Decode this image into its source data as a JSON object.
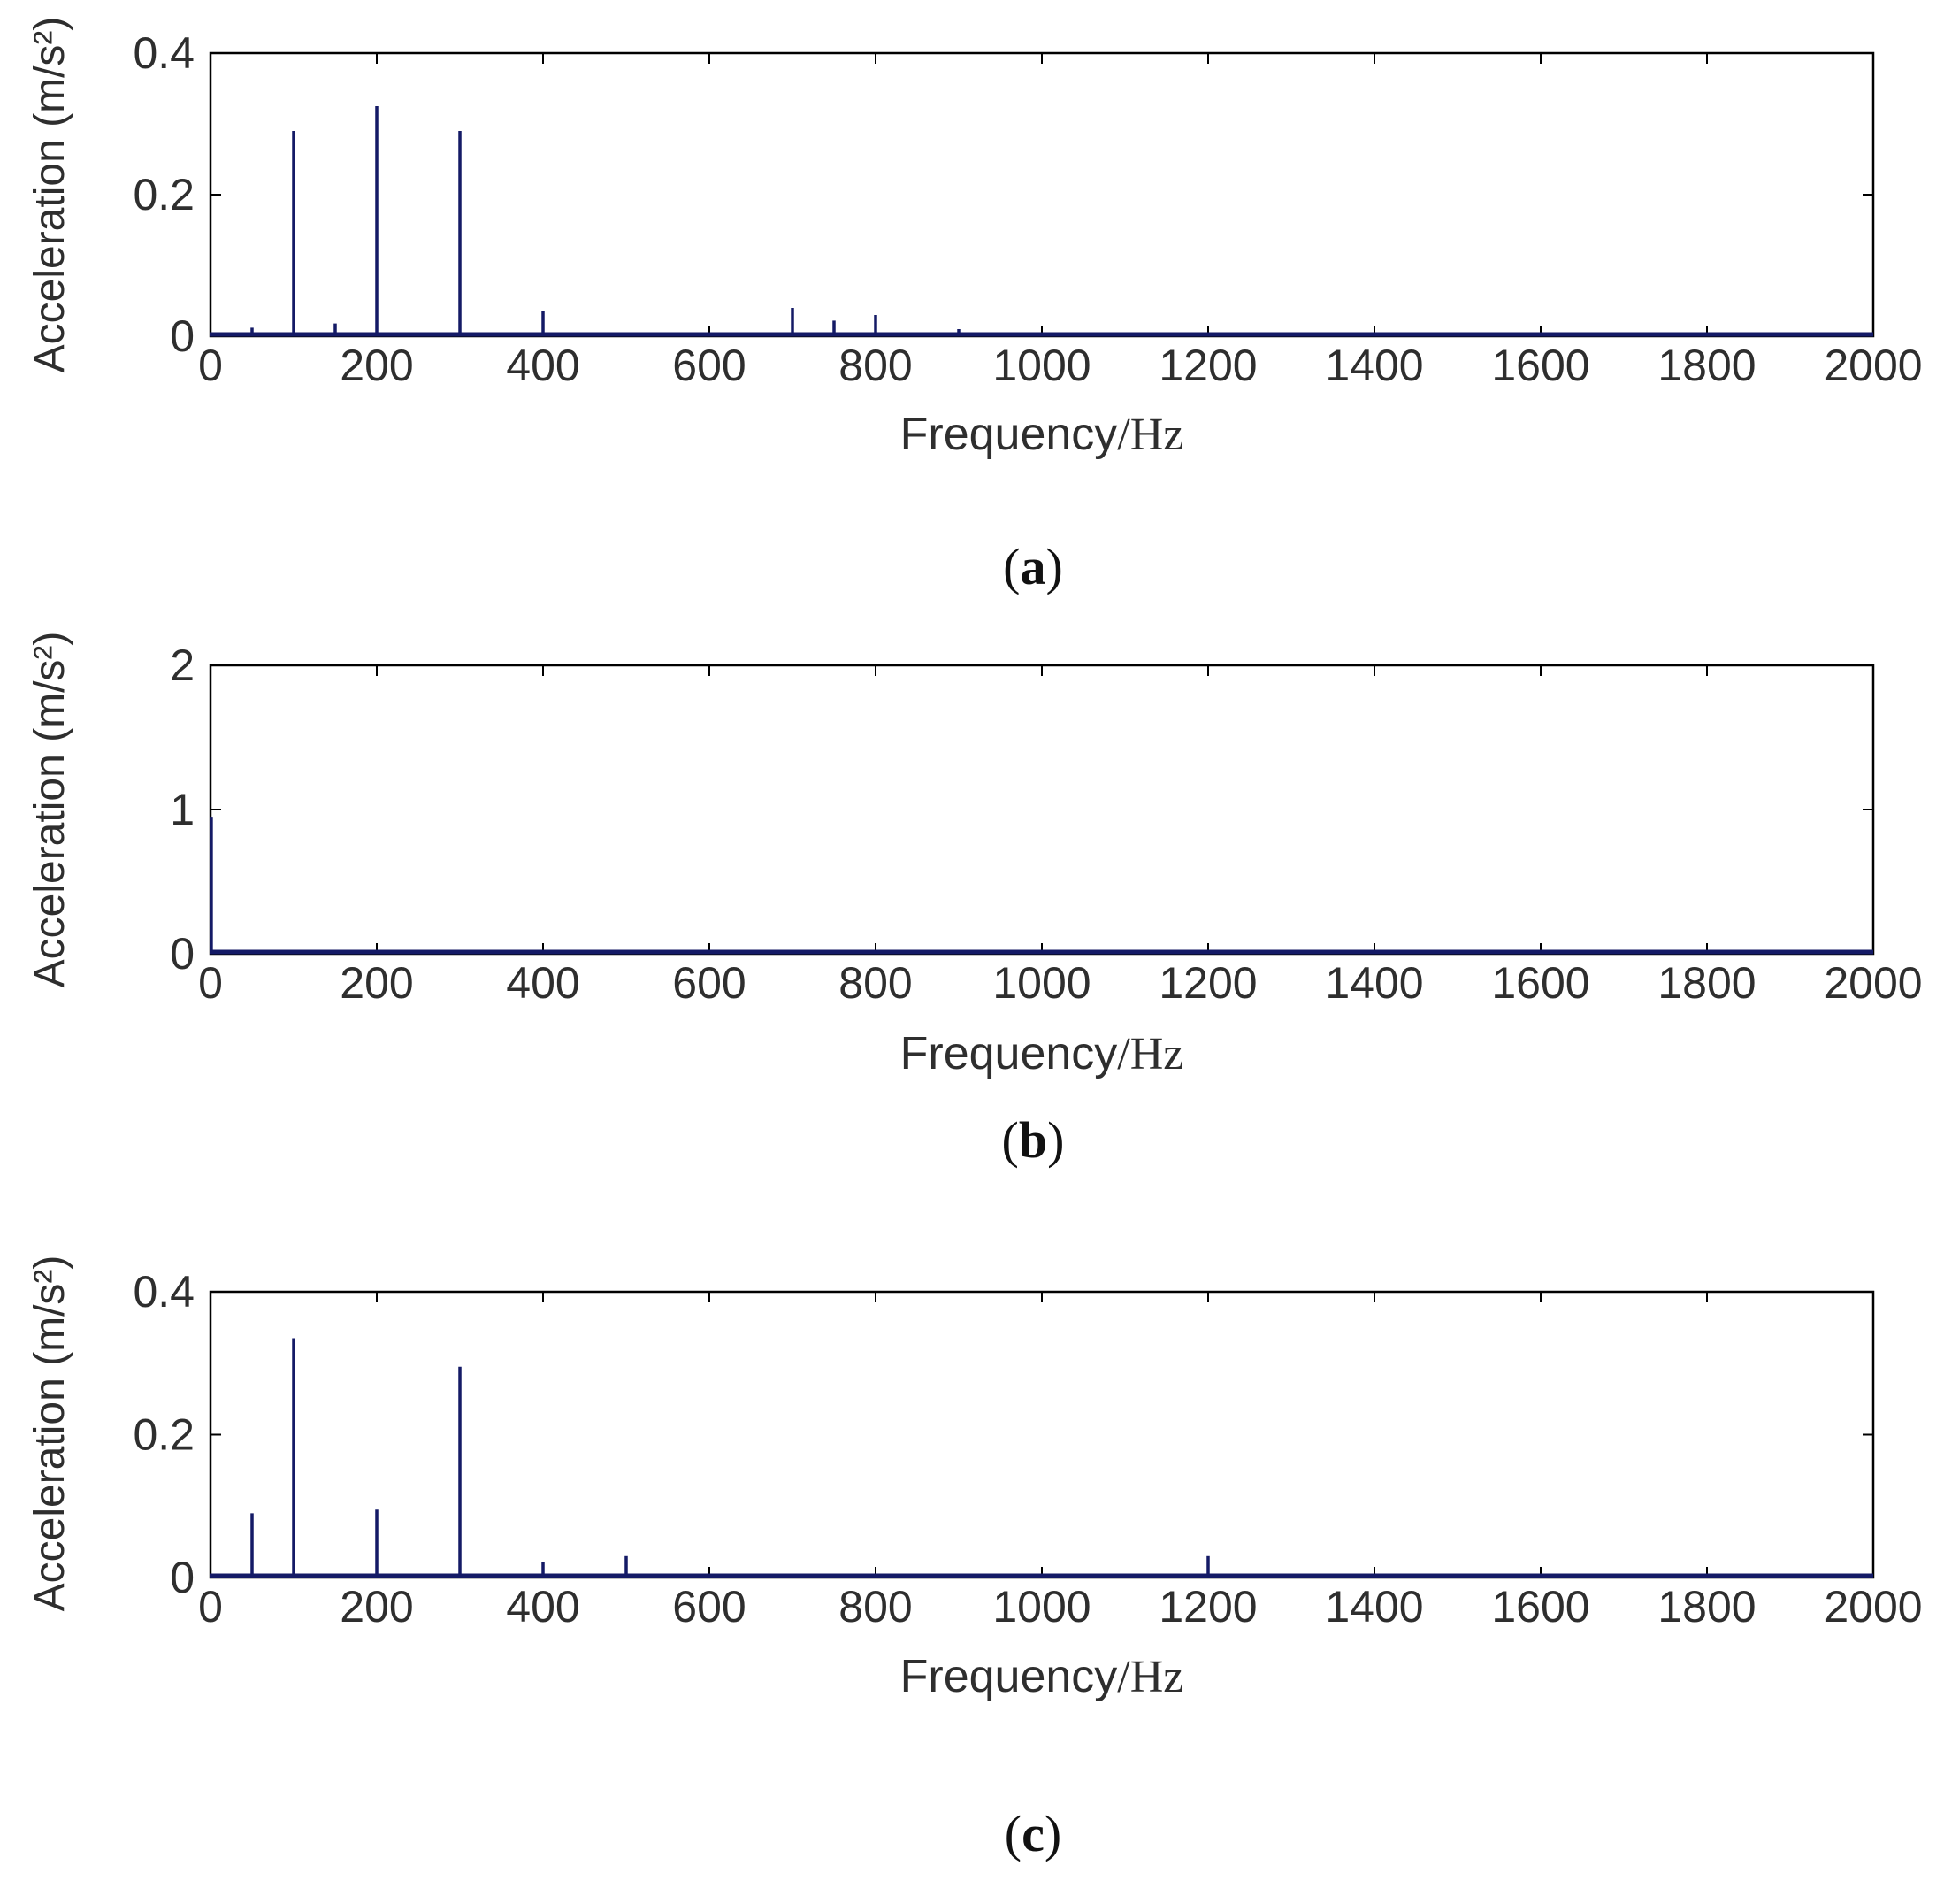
{
  "colors": {
    "series": "#141a66",
    "axes": "#000000",
    "text": "#2e2e2e"
  },
  "chart_data": [
    {
      "type": "bar",
      "subplot_label": "(a)",
      "caption_letter": "a",
      "xlabel_left": "Frequency",
      "xlabel_right": "/Hz",
      "ylabel": "Acceleration (m/s²)",
      "xlim": [
        0,
        2000
      ],
      "ylim": [
        0,
        0.4
      ],
      "xticks": [
        "0",
        "200",
        "400",
        "600",
        "800",
        "1000",
        "1200",
        "1400",
        "1600",
        "1800",
        "2000"
      ],
      "yticks": [
        "0",
        "0.2",
        "0.4"
      ],
      "grid": false,
      "spikes": {
        "x": [
          50,
          100,
          150,
          200,
          300,
          400,
          700,
          750,
          800,
          900
        ],
        "y": [
          0.012,
          0.29,
          0.018,
          0.325,
          0.29,
          0.035,
          0.04,
          0.022,
          0.03,
          0.01
        ]
      }
    },
    {
      "type": "bar",
      "subplot_label": "(b)",
      "caption_letter": "b",
      "xlabel_left": "Frequency",
      "xlabel_right": "/Hz",
      "ylabel": "Acceleration (m/s²)",
      "xlim": [
        0,
        2000
      ],
      "ylim": [
        0,
        2
      ],
      "xticks": [
        "0",
        "200",
        "400",
        "600",
        "800",
        "1000",
        "1200",
        "1400",
        "1600",
        "1800",
        "2000"
      ],
      "yticks": [
        "0",
        "1",
        "2"
      ],
      "grid": false,
      "spikes": {
        "x": [
          1
        ],
        "y": [
          0.95
        ]
      }
    },
    {
      "type": "bar",
      "subplot_label": "(c)",
      "caption_letter": "c",
      "xlabel_left": "Frequency",
      "xlabel_right": "/Hz",
      "ylabel": "Acceleration (m/s²)",
      "xlim": [
        0,
        2000
      ],
      "ylim": [
        0,
        0.4
      ],
      "xticks": [
        "0",
        "200",
        "400",
        "600",
        "800",
        "1000",
        "1200",
        "1400",
        "1600",
        "1800",
        "2000"
      ],
      "yticks": [
        "0",
        "0.2",
        "0.4"
      ],
      "grid": false,
      "spikes": {
        "x": [
          50,
          100,
          200,
          300,
          400,
          500,
          1200
        ],
        "y": [
          0.09,
          0.335,
          0.095,
          0.295,
          0.022,
          0.03,
          0.03
        ]
      }
    }
  ]
}
